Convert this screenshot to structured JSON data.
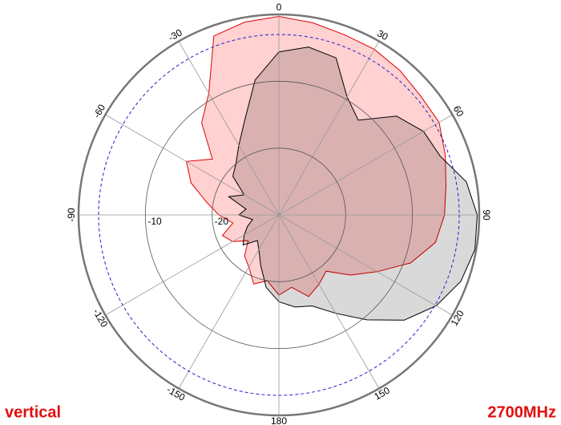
{
  "chart_data": {
    "type": "polar",
    "left_label": "vertical",
    "right_label": "2700MHz",
    "x": [
      -180,
      -170,
      -160,
      -150,
      -140,
      -130,
      -120,
      -110,
      -100,
      -90,
      -80,
      -70,
      -60,
      -50,
      -40,
      -30,
      -20,
      -10,
      0,
      10,
      20,
      30,
      40,
      50,
      60,
      70,
      80,
      90,
      100,
      110,
      120,
      130,
      140,
      150,
      160,
      170
    ],
    "series": [
      {
        "color": "#e00000",
        "fill": "rgba(255,0,0,0.18)",
        "values": [
          -18,
          -20,
          -19,
          -21,
          -22,
          -24,
          -22,
          -21,
          -23,
          -21,
          -19,
          -16,
          -14,
          -17,
          -12,
          -9,
          -1.5,
          -0.7,
          -0.3,
          -0.8,
          -1.3,
          -1.4,
          -1.8,
          -2.3,
          -2.3,
          -3.5,
          -4.6,
          -5.2,
          -6.2,
          -9,
          -13,
          -16,
          -19,
          -18,
          -17,
          -19
        ]
      },
      {
        "color": "#000000",
        "fill": "rgba(0,0,0,0.15)",
        "values": [
          -17,
          -19,
          -22,
          -24,
          -25,
          -23,
          -24,
          -25,
          -26,
          -24,
          -25,
          -22,
          -24,
          -21,
          -20,
          -18,
          -15,
          -9.5,
          -5.6,
          -4.5,
          -5,
          -9.6,
          -11.5,
          -7,
          -5,
          -4.3,
          -1.5,
          -0.3,
          -0.2,
          -1,
          -2.8,
          -5.5,
          -9.5,
          -13,
          -15.5,
          -16
        ]
      }
    ],
    "rlim": [
      -30,
      0
    ],
    "rticks": [
      -20,
      -10
    ],
    "reference_ring": -3,
    "angle_ticks": [
      0,
      30,
      60,
      90,
      120,
      150,
      180,
      -150,
      -120,
      -90,
      -60,
      -30
    ]
  }
}
